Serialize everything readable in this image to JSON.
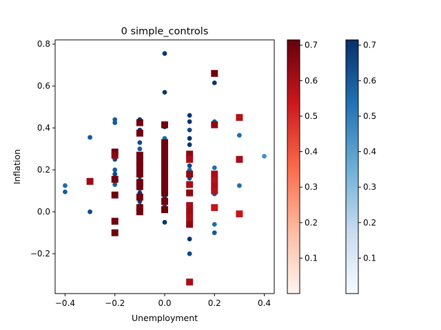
{
  "chart_data": {
    "type": "scatter",
    "title": "0 simple_controls",
    "xlabel": "Unemployment",
    "ylabel": "Inflation",
    "xlim": [
      -0.44,
      0.44
    ],
    "ylim": [
      -0.39,
      0.82
    ],
    "xticks": [
      -0.4,
      -0.2,
      0.0,
      0.2,
      0.4
    ],
    "yticks": [
      -0.2,
      0.0,
      0.2,
      0.4,
      0.6,
      0.8
    ],
    "xtick_labels": [
      "−0.4",
      "−0.2",
      "0.0",
      "0.2",
      "0.4"
    ],
    "ytick_labels": [
      "−0.2",
      "0.0",
      "0.2",
      "0.4",
      "0.6",
      "0.8"
    ],
    "grid": false,
    "series": [
      {
        "marker": "circle",
        "colormap": "Blues",
        "points": [
          {
            "x": -0.4,
            "y": 0.125,
            "c": 0.55
          },
          {
            "x": -0.4,
            "y": 0.095,
            "c": 0.6
          },
          {
            "x": -0.3,
            "y": 0.355,
            "c": 0.6
          },
          {
            "x": -0.3,
            "y": 0.0,
            "c": 0.65
          },
          {
            "x": -0.2,
            "y": 0.44,
            "c": 0.6
          },
          {
            "x": -0.2,
            "y": 0.425,
            "c": 0.6
          },
          {
            "x": -0.2,
            "y": 0.28,
            "c": 0.65
          },
          {
            "x": -0.2,
            "y": 0.25,
            "c": 0.65
          },
          {
            "x": -0.2,
            "y": 0.2,
            "c": 0.6
          },
          {
            "x": -0.2,
            "y": 0.18,
            "c": 0.65
          },
          {
            "x": -0.2,
            "y": 0.15,
            "c": 0.7
          },
          {
            "x": -0.2,
            "y": 0.13,
            "c": 0.6
          },
          {
            "x": -0.1,
            "y": 0.44,
            "c": 0.7
          },
          {
            "x": -0.1,
            "y": 0.39,
            "c": 0.7
          },
          {
            "x": -0.1,
            "y": 0.33,
            "c": 0.65
          },
          {
            "x": -0.1,
            "y": 0.3,
            "c": 0.6
          },
          {
            "x": -0.1,
            "y": 0.27,
            "c": 0.65
          },
          {
            "x": -0.1,
            "y": 0.25,
            "c": 0.7
          },
          {
            "x": -0.1,
            "y": 0.23,
            "c": 0.7
          },
          {
            "x": -0.1,
            "y": 0.21,
            "c": 0.65
          },
          {
            "x": -0.1,
            "y": 0.19,
            "c": 0.7
          },
          {
            "x": -0.1,
            "y": 0.17,
            "c": 0.65
          },
          {
            "x": -0.1,
            "y": 0.15,
            "c": 0.7
          },
          {
            "x": -0.1,
            "y": 0.13,
            "c": 0.7
          },
          {
            "x": -0.1,
            "y": 0.11,
            "c": 0.6
          },
          {
            "x": -0.1,
            "y": 0.09,
            "c": 0.7
          },
          {
            "x": -0.1,
            "y": 0.07,
            "c": 0.65
          },
          {
            "x": -0.1,
            "y": 0.05,
            "c": 0.7
          },
          {
            "x": -0.1,
            "y": 0.03,
            "c": 0.6
          },
          {
            "x": -0.1,
            "y": 0.01,
            "c": 0.7
          },
          {
            "x": 0.0,
            "y": 0.755,
            "c": 0.7
          },
          {
            "x": 0.0,
            "y": 0.57,
            "c": 0.7
          },
          {
            "x": 0.0,
            "y": 0.405,
            "c": 0.65
          },
          {
            "x": 0.0,
            "y": 0.35,
            "c": 0.55
          },
          {
            "x": 0.0,
            "y": 0.33,
            "c": 0.6
          },
          {
            "x": 0.0,
            "y": 0.31,
            "c": 0.7
          },
          {
            "x": 0.0,
            "y": 0.29,
            "c": 0.65
          },
          {
            "x": 0.0,
            "y": 0.27,
            "c": 0.6
          },
          {
            "x": 0.0,
            "y": 0.25,
            "c": 0.7
          },
          {
            "x": 0.0,
            "y": 0.23,
            "c": 0.65
          },
          {
            "x": 0.0,
            "y": 0.21,
            "c": 0.55
          },
          {
            "x": 0.0,
            "y": 0.19,
            "c": 0.7
          },
          {
            "x": 0.0,
            "y": 0.17,
            "c": 0.6
          },
          {
            "x": 0.0,
            "y": 0.15,
            "c": 0.65
          },
          {
            "x": 0.0,
            "y": 0.13,
            "c": 0.7
          },
          {
            "x": 0.0,
            "y": 0.11,
            "c": 0.6
          },
          {
            "x": 0.0,
            "y": 0.09,
            "c": 0.65
          },
          {
            "x": 0.0,
            "y": 0.07,
            "c": 0.7
          },
          {
            "x": 0.0,
            "y": 0.05,
            "c": 0.6
          },
          {
            "x": 0.0,
            "y": 0.03,
            "c": 0.65
          },
          {
            "x": 0.0,
            "y": -0.05,
            "c": 0.7
          },
          {
            "x": 0.1,
            "y": 0.46,
            "c": 0.7
          },
          {
            "x": 0.1,
            "y": 0.43,
            "c": 0.7
          },
          {
            "x": 0.1,
            "y": 0.39,
            "c": 0.65
          },
          {
            "x": 0.1,
            "y": 0.35,
            "c": 0.7
          },
          {
            "x": 0.1,
            "y": 0.32,
            "c": 0.7
          },
          {
            "x": 0.1,
            "y": 0.28,
            "c": 0.65
          },
          {
            "x": 0.1,
            "y": 0.25,
            "c": 0.6
          },
          {
            "x": 0.1,
            "y": 0.22,
            "c": 0.65
          },
          {
            "x": 0.1,
            "y": 0.2,
            "c": 0.55
          },
          {
            "x": 0.1,
            "y": 0.185,
            "c": 0.6
          },
          {
            "x": 0.1,
            "y": 0.16,
            "c": 0.65
          },
          {
            "x": 0.1,
            "y": 0.13,
            "c": 0.7
          },
          {
            "x": 0.1,
            "y": 0.03,
            "c": 0.6
          },
          {
            "x": 0.1,
            "y": -0.02,
            "c": 0.65
          },
          {
            "x": 0.1,
            "y": -0.06,
            "c": 0.7
          },
          {
            "x": 0.1,
            "y": -0.13,
            "c": 0.7
          },
          {
            "x": 0.1,
            "y": -0.2,
            "c": 0.65
          },
          {
            "x": 0.2,
            "y": 0.615,
            "c": 0.7
          },
          {
            "x": 0.2,
            "y": 0.43,
            "c": 0.6
          },
          {
            "x": 0.2,
            "y": 0.21,
            "c": 0.55
          },
          {
            "x": 0.2,
            "y": 0.18,
            "c": 0.55
          },
          {
            "x": 0.2,
            "y": 0.16,
            "c": 0.6
          },
          {
            "x": 0.2,
            "y": 0.1,
            "c": 0.55
          },
          {
            "x": 0.2,
            "y": 0.085,
            "c": 0.6
          },
          {
            "x": 0.2,
            "y": -0.06,
            "c": 0.55
          },
          {
            "x": 0.2,
            "y": -0.1,
            "c": 0.6
          },
          {
            "x": 0.3,
            "y": 0.365,
            "c": 0.55
          },
          {
            "x": 0.3,
            "y": 0.125,
            "c": 0.55
          },
          {
            "x": 0.3,
            "y": 0.245,
            "c": 0.6
          },
          {
            "x": 0.4,
            "y": 0.265,
            "c": 0.45
          }
        ]
      },
      {
        "marker": "square",
        "colormap": "Reds",
        "points": [
          {
            "x": -0.3,
            "y": 0.145,
            "c": 0.62
          },
          {
            "x": -0.2,
            "y": 0.285,
            "c": 0.7
          },
          {
            "x": -0.2,
            "y": 0.27,
            "c": 0.65
          },
          {
            "x": -0.2,
            "y": 0.155,
            "c": 0.7
          },
          {
            "x": -0.2,
            "y": 0.08,
            "c": 0.7
          },
          {
            "x": -0.2,
            "y": -0.045,
            "c": 0.7
          },
          {
            "x": -0.2,
            "y": -0.1,
            "c": 0.7
          },
          {
            "x": -0.1,
            "y": 0.425,
            "c": 0.7
          },
          {
            "x": -0.1,
            "y": 0.375,
            "c": 0.7
          },
          {
            "x": -0.1,
            "y": 0.27,
            "c": 0.7
          },
          {
            "x": -0.1,
            "y": 0.24,
            "c": 0.7
          },
          {
            "x": -0.1,
            "y": 0.21,
            "c": 0.7
          },
          {
            "x": -0.1,
            "y": 0.18,
            "c": 0.7
          },
          {
            "x": -0.1,
            "y": 0.14,
            "c": 0.7
          },
          {
            "x": -0.1,
            "y": 0.12,
            "c": 0.7
          },
          {
            "x": -0.1,
            "y": 0.07,
            "c": 0.7
          },
          {
            "x": -0.1,
            "y": 0.02,
            "c": 0.7
          },
          {
            "x": -0.1,
            "y": 0.0,
            "c": 0.7
          },
          {
            "x": 0.0,
            "y": 0.415,
            "c": 0.7
          },
          {
            "x": 0.0,
            "y": 0.33,
            "c": 0.7
          },
          {
            "x": 0.0,
            "y": 0.3,
            "c": 0.7
          },
          {
            "x": 0.0,
            "y": 0.27,
            "c": 0.7
          },
          {
            "x": 0.0,
            "y": 0.24,
            "c": 0.7
          },
          {
            "x": 0.0,
            "y": 0.21,
            "c": 0.7
          },
          {
            "x": 0.0,
            "y": 0.18,
            "c": 0.7
          },
          {
            "x": 0.0,
            "y": 0.15,
            "c": 0.7
          },
          {
            "x": 0.0,
            "y": 0.12,
            "c": 0.7
          },
          {
            "x": 0.0,
            "y": 0.09,
            "c": 0.7
          },
          {
            "x": 0.0,
            "y": 0.05,
            "c": 0.7
          },
          {
            "x": 0.0,
            "y": 0.01,
            "c": 0.7
          },
          {
            "x": 0.1,
            "y": 0.275,
            "c": 0.65
          },
          {
            "x": 0.1,
            "y": 0.25,
            "c": 0.6
          },
          {
            "x": 0.1,
            "y": 0.18,
            "c": 0.65
          },
          {
            "x": 0.1,
            "y": 0.13,
            "c": 0.6
          },
          {
            "x": 0.1,
            "y": 0.09,
            "c": 0.65
          },
          {
            "x": 0.1,
            "y": 0.03,
            "c": 0.6
          },
          {
            "x": 0.1,
            "y": 0.0,
            "c": 0.62
          },
          {
            "x": 0.1,
            "y": -0.03,
            "c": 0.6
          },
          {
            "x": 0.1,
            "y": -0.06,
            "c": 0.65
          },
          {
            "x": 0.1,
            "y": -0.335,
            "c": 0.6
          },
          {
            "x": 0.2,
            "y": 0.66,
            "c": 0.7
          },
          {
            "x": 0.2,
            "y": 0.415,
            "c": 0.65
          },
          {
            "x": 0.2,
            "y": 0.18,
            "c": 0.6
          },
          {
            "x": 0.2,
            "y": 0.15,
            "c": 0.58
          },
          {
            "x": 0.2,
            "y": 0.12,
            "c": 0.6
          },
          {
            "x": 0.2,
            "y": 0.1,
            "c": 0.58
          },
          {
            "x": 0.2,
            "y": 0.02,
            "c": 0.55
          },
          {
            "x": 0.3,
            "y": 0.45,
            "c": 0.58
          },
          {
            "x": 0.3,
            "y": 0.25,
            "c": 0.6
          },
          {
            "x": 0.3,
            "y": -0.01,
            "c": 0.55
          }
        ]
      }
    ],
    "colorbars": [
      {
        "colormap": "Reds",
        "range": [
          0.0,
          0.715
        ],
        "ticks": [
          0.1,
          0.2,
          0.3,
          0.4,
          0.5,
          0.6,
          0.7
        ],
        "tick_labels": [
          "0.1",
          "0.2",
          "0.3",
          "0.4",
          "0.5",
          "0.6",
          "0.7"
        ]
      },
      {
        "colormap": "Blues",
        "range": [
          0.0,
          0.715
        ],
        "ticks": [
          0.1,
          0.2,
          0.3,
          0.4,
          0.5,
          0.6,
          0.7
        ],
        "tick_labels": [
          "0.1",
          "0.2",
          "0.3",
          "0.4",
          "0.5",
          "0.6",
          "0.7"
        ]
      }
    ],
    "colors": {
      "reds_low": "#fff5f0",
      "reds_mid": "#fb6a4a",
      "reds_high": "#67000d",
      "blues_low": "#f7fbff",
      "blues_mid": "#6baed6",
      "blues_high": "#08306b"
    }
  }
}
